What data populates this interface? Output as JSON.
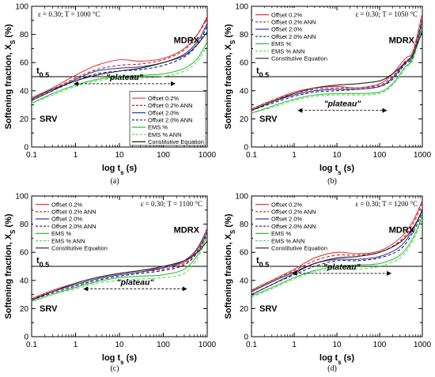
{
  "chart_data": [
    {
      "type": "line",
      "panel": "(a)",
      "condition": "ε = 0.30; T = 1000 °C",
      "xscale": "log",
      "xlim": [
        0.1,
        1000
      ],
      "ylim": [
        0,
        100
      ],
      "xlabel": "log t_s (s)",
      "ylabel": "Softening fraction, X_S (%)",
      "xticks": [
        "0.1",
        "1",
        "10",
        "100",
        "1000"
      ],
      "yticks": [
        "0",
        "20",
        "40",
        "60",
        "80",
        "100"
      ],
      "reference_line": {
        "label": "t0.5",
        "y": 50
      },
      "annotations": {
        "mdrx": "MDRX",
        "srv": "SRV",
        "plateau": "\"plateau\"",
        "plateau_x": [
          0.9,
          190
        ],
        "plateau_y": 45
      },
      "legend_position": "bottom-right",
      "series": [
        {
          "name": "Offset 0.2%",
          "color": "#e8383d",
          "dash": "solid",
          "x": [
            0.1,
            0.3,
            1,
            3,
            10,
            30,
            100,
            300,
            600,
            1000
          ],
          "y": [
            35,
            42,
            51,
            58,
            62,
            61,
            63,
            70,
            80,
            93
          ]
        },
        {
          "name": "Offset 0.2% ANN",
          "color": "#b0242a",
          "dash": "dashed",
          "x": [
            0.1,
            0.3,
            1,
            3,
            10,
            30,
            100,
            300,
            600,
            1000
          ],
          "y": [
            34,
            41,
            49,
            55,
            58,
            59,
            62,
            69,
            80,
            91
          ]
        },
        {
          "name": "Offset 2.0%",
          "color": "#3b3ba8",
          "dash": "solid",
          "x": [
            0.1,
            0.3,
            1,
            3,
            10,
            30,
            100,
            300,
            600,
            1000
          ],
          "y": [
            33,
            40,
            48,
            54,
            56,
            57,
            60,
            66,
            75,
            88
          ]
        },
        {
          "name": "Offset 2.0% ANN",
          "color": "#1f1f6e",
          "dash": "dashed",
          "x": [
            0.1,
            0.3,
            1,
            3,
            10,
            30,
            100,
            300,
            600,
            1000
          ],
          "y": [
            33,
            40,
            47,
            52,
            54,
            55,
            58,
            64,
            73,
            86
          ]
        },
        {
          "name": "EMS %",
          "color": "#2ec13a",
          "dash": "solid",
          "x": [
            0.1,
            0.3,
            1,
            3,
            10,
            30,
            100,
            300,
            600,
            1000
          ],
          "y": [
            31,
            38,
            44,
            48,
            50,
            51,
            52,
            56,
            63,
            75
          ]
        },
        {
          "name": "EMS % ANN",
          "color": "#5fd85f",
          "dash": "dashed",
          "x": [
            0.1,
            0.3,
            1,
            3,
            10,
            30,
            100,
            300,
            600,
            1000
          ],
          "y": [
            31,
            37,
            43,
            47,
            49,
            49,
            50,
            54,
            61,
            72
          ]
        },
        {
          "name": "Constitutive Equation",
          "color": "#222222",
          "dash": "solid",
          "x": [
            0.1,
            0.3,
            1,
            3,
            10,
            30,
            100,
            300,
            600,
            1000
          ],
          "y": [
            34,
            41,
            47,
            51,
            54,
            56,
            60,
            65,
            73,
            82
          ]
        }
      ]
    },
    {
      "type": "line",
      "panel": "(b)",
      "condition": "ε = 0.30; T = 1050 °C",
      "xscale": "log",
      "xlim": [
        0.1,
        1000
      ],
      "ylim": [
        0,
        100
      ],
      "xlabel": "log t_s (s)",
      "ylabel": "Softening fraction, X_S (%)",
      "xticks": [
        "0.1",
        "1",
        "10",
        "100",
        "1000"
      ],
      "yticks": [
        "0",
        "20",
        "40",
        "60",
        "80",
        "100"
      ],
      "reference_line": {
        "label": "t0.5",
        "y": 50
      },
      "annotations": {
        "mdrx": "MDRX",
        "srv": "SRV",
        "plateau": "\"plateau\"",
        "plateau_x": [
          1.2,
          150
        ],
        "plateau_y": 26
      },
      "legend_position": "top-left",
      "series": [
        {
          "name": "Offset 0.2%",
          "color": "#e8383d",
          "dash": "solid",
          "x": [
            0.1,
            0.3,
            1,
            3,
            10,
            30,
            100,
            200,
            400,
            600,
            1000
          ],
          "y": [
            27,
            33,
            39,
            42,
            43,
            42,
            45,
            52,
            63,
            68,
            95
          ]
        },
        {
          "name": "Offset 0.2% ANN",
          "color": "#b0242a",
          "dash": "dashed",
          "x": [
            0.1,
            0.3,
            1,
            3,
            10,
            30,
            100,
            200,
            400,
            600,
            1000
          ],
          "y": [
            27,
            33,
            38,
            41,
            42,
            42,
            44,
            50,
            61,
            66,
            92
          ]
        },
        {
          "name": "Offset 2.0%",
          "color": "#3b3ba8",
          "dash": "solid",
          "x": [
            0.1,
            0.3,
            1,
            3,
            10,
            30,
            100,
            200,
            400,
            600,
            1000
          ],
          "y": [
            26,
            32,
            37,
            40,
            41,
            41,
            43,
            49,
            60,
            65,
            90
          ]
        },
        {
          "name": "Offset 2.0% ANN",
          "color": "#1f1f6e",
          "dash": "dashed",
          "x": [
            0.1,
            0.3,
            1,
            3,
            10,
            30,
            100,
            200,
            400,
            600,
            1000
          ],
          "y": [
            26,
            31,
            36,
            39,
            40,
            41,
            43,
            48,
            59,
            64,
            88
          ]
        },
        {
          "name": "EMS %",
          "color": "#2ec13a",
          "dash": "solid",
          "x": [
            0.1,
            0.3,
            1,
            3,
            10,
            30,
            100,
            200,
            400,
            600,
            1000
          ],
          "y": [
            24,
            29,
            34,
            37,
            38,
            38,
            39,
            45,
            57,
            63,
            86
          ]
        },
        {
          "name": "EMS % ANN",
          "color": "#5fd85f",
          "dash": "dashed",
          "x": [
            0.1,
            0.3,
            1,
            3,
            10,
            30,
            100,
            200,
            400,
            600,
            1000
          ],
          "y": [
            24,
            28,
            33,
            36,
            37,
            37,
            38,
            44,
            56,
            62,
            84
          ]
        },
        {
          "name": "Constitutive Equation",
          "color": "#222222",
          "dash": "solid",
          "x": [
            0.1,
            0.3,
            1,
            3,
            10,
            30,
            100,
            200,
            400,
            600,
            1000
          ],
          "y": [
            26,
            32,
            38,
            42,
            44,
            45,
            47,
            52,
            60,
            66,
            82
          ]
        }
      ]
    },
    {
      "type": "line",
      "panel": "(c)",
      "condition": "ε = 0.30; T = 1100 °C",
      "xscale": "log",
      "xlim": [
        0.1,
        1000
      ],
      "ylim": [
        0,
        100
      ],
      "xlabel": "log t_s (s)",
      "ylabel": "Softening fraction, X_S (%)",
      "xticks": [
        "0.1",
        "1",
        "10",
        "100",
        "1000"
      ],
      "yticks": [
        "0",
        "20",
        "40",
        "60",
        "80",
        "100"
      ],
      "reference_line": {
        "label": "t0.5",
        "y": 50
      },
      "annotations": {
        "mdrx": "MDRX",
        "srv": "SRV",
        "plateau": "\"plateau\"",
        "plateau_x": [
          1.5,
          350
        ],
        "plateau_y": 34
      },
      "legend_position": "top-left",
      "series": [
        {
          "name": "Offset 0.2%",
          "color": "#e8383d",
          "dash": "solid",
          "x": [
            0.1,
            0.3,
            1,
            3,
            10,
            30,
            100,
            300,
            600,
            1000
          ],
          "y": [
            27,
            33,
            38,
            42,
            45,
            47,
            49,
            53,
            62,
            75
          ]
        },
        {
          "name": "Offset 0.2% ANN",
          "color": "#b0242a",
          "dash": "dashed",
          "x": [
            0.1,
            0.3,
            1,
            3,
            10,
            30,
            100,
            300,
            600,
            1000
          ],
          "y": [
            27,
            32,
            37,
            41,
            44,
            46,
            48,
            52,
            61,
            74
          ]
        },
        {
          "name": "Offset 2.0%",
          "color": "#3b3ba8",
          "dash": "solid",
          "x": [
            0.1,
            0.3,
            1,
            3,
            10,
            30,
            100,
            300,
            600,
            1000
          ],
          "y": [
            26,
            32,
            37,
            41,
            44,
            46,
            49,
            54,
            63,
            77
          ]
        },
        {
          "name": "Offset 2.0% ANN",
          "color": "#1f1f6e",
          "dash": "dashed",
          "x": [
            0.1,
            0.3,
            1,
            3,
            10,
            30,
            100,
            300,
            600,
            1000
          ],
          "y": [
            26,
            31,
            36,
            40,
            43,
            45,
            47,
            51,
            60,
            74
          ]
        },
        {
          "name": "EMS %",
          "color": "#2ec13a",
          "dash": "solid",
          "x": [
            0.1,
            0.3,
            1,
            3,
            10,
            30,
            100,
            300,
            600,
            1000
          ],
          "y": [
            25,
            30,
            35,
            39,
            42,
            43,
            44,
            48,
            58,
            72
          ]
        },
        {
          "name": "EMS % ANN",
          "color": "#5fd85f",
          "dash": "dashed",
          "x": [
            0.1,
            0.3,
            1,
            3,
            10,
            30,
            100,
            300,
            600,
            1000
          ],
          "y": [
            25,
            30,
            34,
            38,
            40,
            41,
            42,
            45,
            56,
            70
          ]
        },
        {
          "name": "Constitutive Equation",
          "color": "#222222",
          "dash": "solid",
          "x": [
            0.1,
            0.3,
            1,
            3,
            10,
            30,
            100,
            300,
            600,
            1000
          ],
          "y": [
            26,
            32,
            38,
            42,
            45,
            47,
            50,
            54,
            60,
            68
          ]
        }
      ]
    },
    {
      "type": "line",
      "panel": "(d)",
      "condition": "ε = 0.30; T = 1200 °C",
      "xscale": "log",
      "xlim": [
        0.1,
        1000
      ],
      "ylim": [
        0,
        100
      ],
      "xlabel": "log t_s (s)",
      "ylabel": "Softening fraction, X_S (%)",
      "xticks": [
        "0.1",
        "1",
        "10",
        "100",
        "1000"
      ],
      "yticks": [
        "0",
        "20",
        "40",
        "60",
        "80",
        "100"
      ],
      "reference_line": {
        "label": "t0.5",
        "y": 50
      },
      "annotations": {
        "mdrx": "MDRX",
        "srv": "SRV",
        "plateau": "\"plateau\"",
        "plateau_x": [
          0.9,
          190
        ],
        "plateau_y": 45
      },
      "legend_position": "top-left",
      "series": [
        {
          "name": "Offset 0.2%",
          "color": "#e8383d",
          "dash": "solid",
          "x": [
            0.1,
            0.3,
            1,
            3,
            10,
            30,
            100,
            300,
            600,
            1000
          ],
          "y": [
            33,
            40,
            48,
            56,
            60,
            59,
            61,
            70,
            82,
            97
          ]
        },
        {
          "name": "Offset 0.2% ANN",
          "color": "#b0242a",
          "dash": "dashed",
          "x": [
            0.1,
            0.3,
            1,
            3,
            10,
            30,
            100,
            300,
            600,
            1000
          ],
          "y": [
            33,
            40,
            47,
            54,
            58,
            58,
            60,
            68,
            80,
            95
          ]
        },
        {
          "name": "Offset 2.0%",
          "color": "#3b3ba8",
          "dash": "solid",
          "x": [
            0.1,
            0.3,
            1,
            3,
            10,
            30,
            100,
            300,
            600,
            1000
          ],
          "y": [
            30,
            37,
            45,
            52,
            55,
            55,
            57,
            64,
            76,
            90
          ]
        },
        {
          "name": "Offset 2.0% ANN",
          "color": "#1f1f6e",
          "dash": "dashed",
          "x": [
            0.1,
            0.3,
            1,
            3,
            10,
            30,
            100,
            300,
            600,
            1000
          ],
          "y": [
            30,
            37,
            44,
            50,
            54,
            54,
            56,
            62,
            74,
            88
          ]
        },
        {
          "name": "EMS %",
          "color": "#2ec13a",
          "dash": "solid",
          "x": [
            0.1,
            0.3,
            1,
            3,
            10,
            30,
            100,
            300,
            600,
            1000
          ],
          "y": [
            29,
            35,
            42,
            47,
            50,
            51,
            52,
            58,
            70,
            86
          ]
        },
        {
          "name": "EMS % ANN",
          "color": "#5fd85f",
          "dash": "dashed",
          "x": [
            0.1,
            0.3,
            1,
            3,
            10,
            30,
            100,
            300,
            600,
            1000
          ],
          "y": [
            28,
            34,
            41,
            46,
            48,
            48,
            50,
            56,
            68,
            84
          ]
        },
        {
          "name": "Constitutive Equation",
          "color": "#222222",
          "dash": "solid",
          "x": [
            0.1,
            0.3,
            1,
            3,
            10,
            30,
            100,
            300,
            600,
            1000
          ],
          "y": [
            32,
            39,
            46,
            52,
            56,
            57,
            60,
            67,
            77,
            90
          ]
        }
      ]
    }
  ]
}
